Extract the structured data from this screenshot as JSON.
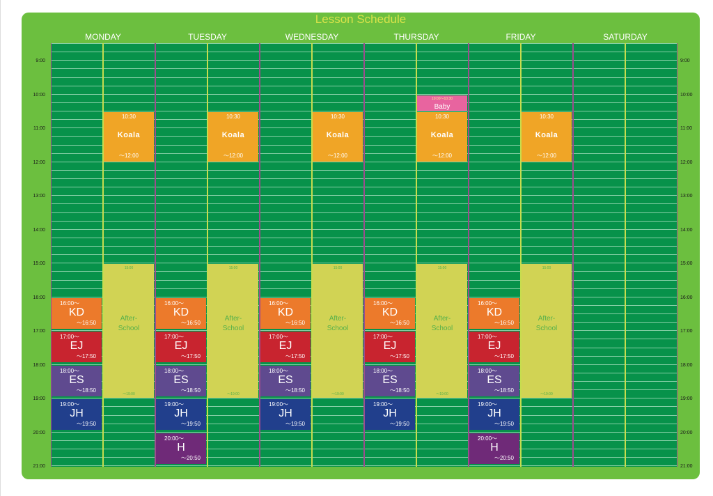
{
  "title": "Lesson Schedule",
  "days": [
    "MONDAY",
    "TUESDAY",
    "WEDNESDAY",
    "THURSDAY",
    "FRIDAY",
    "SATURDAY"
  ],
  "times": [
    "9:00",
    "10:00",
    "11:00",
    "12:00",
    "13:00",
    "14:00",
    "15:00",
    "16:00",
    "17:00",
    "18:00",
    "19:00",
    "20:00",
    "21:00"
  ],
  "colors": {
    "board": "#6cbf3f",
    "grid": "#07924a",
    "koala": "#f0a526",
    "after_school": "#d1d354",
    "kd": "#ec7a2b",
    "ej": "#c8242f",
    "es": "#5f4a8f",
    "jh": "#213f8c",
    "h": "#6f2a78",
    "baby": "#e8649f"
  },
  "koala": {
    "start": "10:30",
    "name": "Koala",
    "end": "～12:00"
  },
  "after_school": {
    "start": "15:00",
    "name": "After-\nSchool",
    "end": "～19:00"
  },
  "baby": {
    "time": "10:00～10:30",
    "name": "Baby"
  },
  "classes": {
    "kd": {
      "start": "16:00～",
      "name": "KD",
      "end": "～16:50"
    },
    "ej": {
      "start": "17:00～",
      "name": "EJ",
      "end": "～17:50"
    },
    "es": {
      "start": "18:00～",
      "name": "ES",
      "end": "～18:50"
    },
    "jh": {
      "start": "19:00～",
      "name": "JH",
      "end": "～19:50"
    },
    "h": {
      "start": "20:00～",
      "name": "H",
      "end": "～20:50"
    }
  },
  "schedule": {
    "koala_days": [
      0,
      1,
      2,
      3,
      4
    ],
    "after_school_days": [
      0,
      1,
      2,
      3,
      4
    ],
    "baby_days": [
      3
    ],
    "kd_days": [
      0,
      1,
      2,
      3,
      4
    ],
    "ej_days": [
      0,
      1,
      2,
      3,
      4
    ],
    "es_days": [
      0,
      1,
      2,
      3,
      4
    ],
    "jh_days": [
      0,
      1,
      2,
      3,
      4
    ],
    "h_days": [
      1,
      4
    ]
  }
}
